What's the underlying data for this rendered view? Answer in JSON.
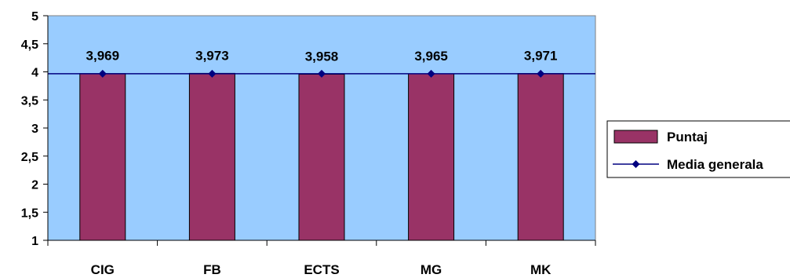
{
  "chart_data": {
    "type": "bar",
    "categories": [
      "CIG",
      "FB",
      "ECTS",
      "MG",
      "MK"
    ],
    "series": [
      {
        "name": "Puntaj",
        "type": "bar",
        "values": [
          3.969,
          3.973,
          3.958,
          3.965,
          3.971
        ]
      },
      {
        "name": "Media generala",
        "type": "line",
        "values": [
          3.967,
          3.967,
          3.967,
          3.967,
          3.967
        ]
      }
    ],
    "data_labels": [
      "3,969",
      "3,973",
      "3,958",
      "3,965",
      "3,971"
    ],
    "y_ticks": [
      "1",
      "1,5",
      "2",
      "2,5",
      "3",
      "3,5",
      "4",
      "4,5",
      "5"
    ],
    "ylim": [
      1,
      5
    ],
    "title": "",
    "xlabel": "",
    "ylabel": "",
    "grid": false,
    "legend_position": "right",
    "colors": {
      "plot_background": "#99CCFF",
      "bar_fill": "#993366",
      "line": "#000080",
      "marker": "#000080",
      "axis": "#000000"
    }
  }
}
